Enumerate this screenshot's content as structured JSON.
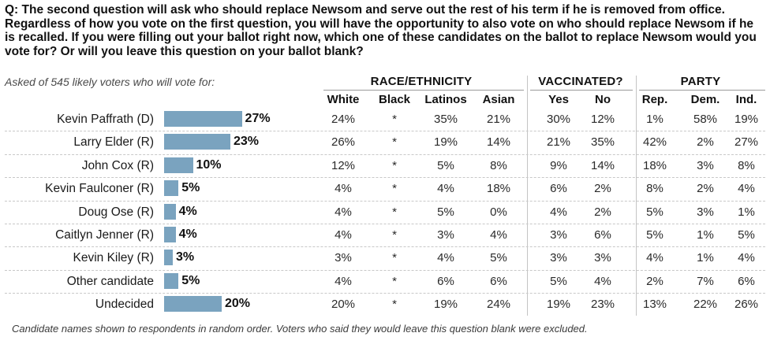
{
  "question": "Q: The second question will ask who should replace Newsom and serve out the rest of his term if he is removed from office. Regardless of how you vote on the first question, you will have the opportunity to also vote on who should replace Newsom if he is recalled. If you were filling out your ballot right now, which one of these candidates on the ballot to replace Newsom would you vote for? Or will you leave this question on your ballot blank?",
  "subtitle": "Asked of 545 likely voters who will vote for:",
  "groups": [
    "RACE/ETHNICITY",
    "VACCINATED?",
    "PARTY"
  ],
  "columns": [
    "White",
    "Black",
    "Latinos",
    "Asian",
    "Yes",
    "No",
    "Rep.",
    "Dem.",
    "Ind."
  ],
  "footnote": "Candidate names shown to respondents in random order. Voters who said they would leave this question blank were excluded.",
  "colors": {
    "bar": "#7aa3bf"
  },
  "chart_data": {
    "type": "bar",
    "categories": [
      "Kevin Paffrath (D)",
      "Larry Elder (R)",
      "John Cox (R)",
      "Kevin Faulconer (R)",
      "Doug Ose (R)",
      "Caitlyn Jenner (R)",
      "Kevin Kiley (R)",
      "Other candidate",
      "Undecided"
    ],
    "values": [
      27,
      23,
      10,
      5,
      4,
      4,
      3,
      5,
      20
    ],
    "value_labels": [
      "27%",
      "23%",
      "10%",
      "5%",
      "4%",
      "4%",
      "3%",
      "5%",
      "20%"
    ],
    "table": [
      [
        "24%",
        "*",
        "35%",
        "21%",
        "30%",
        "12%",
        "1%",
        "58%",
        "19%"
      ],
      [
        "26%",
        "*",
        "19%",
        "14%",
        "21%",
        "35%",
        "42%",
        "2%",
        "27%"
      ],
      [
        "12%",
        "*",
        "5%",
        "8%",
        "9%",
        "14%",
        "18%",
        "3%",
        "8%"
      ],
      [
        "4%",
        "*",
        "4%",
        "18%",
        "6%",
        "2%",
        "8%",
        "2%",
        "4%"
      ],
      [
        "4%",
        "*",
        "5%",
        "0%",
        "4%",
        "2%",
        "5%",
        "3%",
        "1%"
      ],
      [
        "4%",
        "*",
        "3%",
        "4%",
        "3%",
        "6%",
        "5%",
        "1%",
        "5%"
      ],
      [
        "3%",
        "*",
        "4%",
        "5%",
        "3%",
        "3%",
        "4%",
        "1%",
        "4%"
      ],
      [
        "4%",
        "*",
        "6%",
        "6%",
        "5%",
        "4%",
        "2%",
        "7%",
        "6%"
      ],
      [
        "20%",
        "*",
        "19%",
        "24%",
        "19%",
        "23%",
        "13%",
        "22%",
        "26%"
      ]
    ]
  }
}
